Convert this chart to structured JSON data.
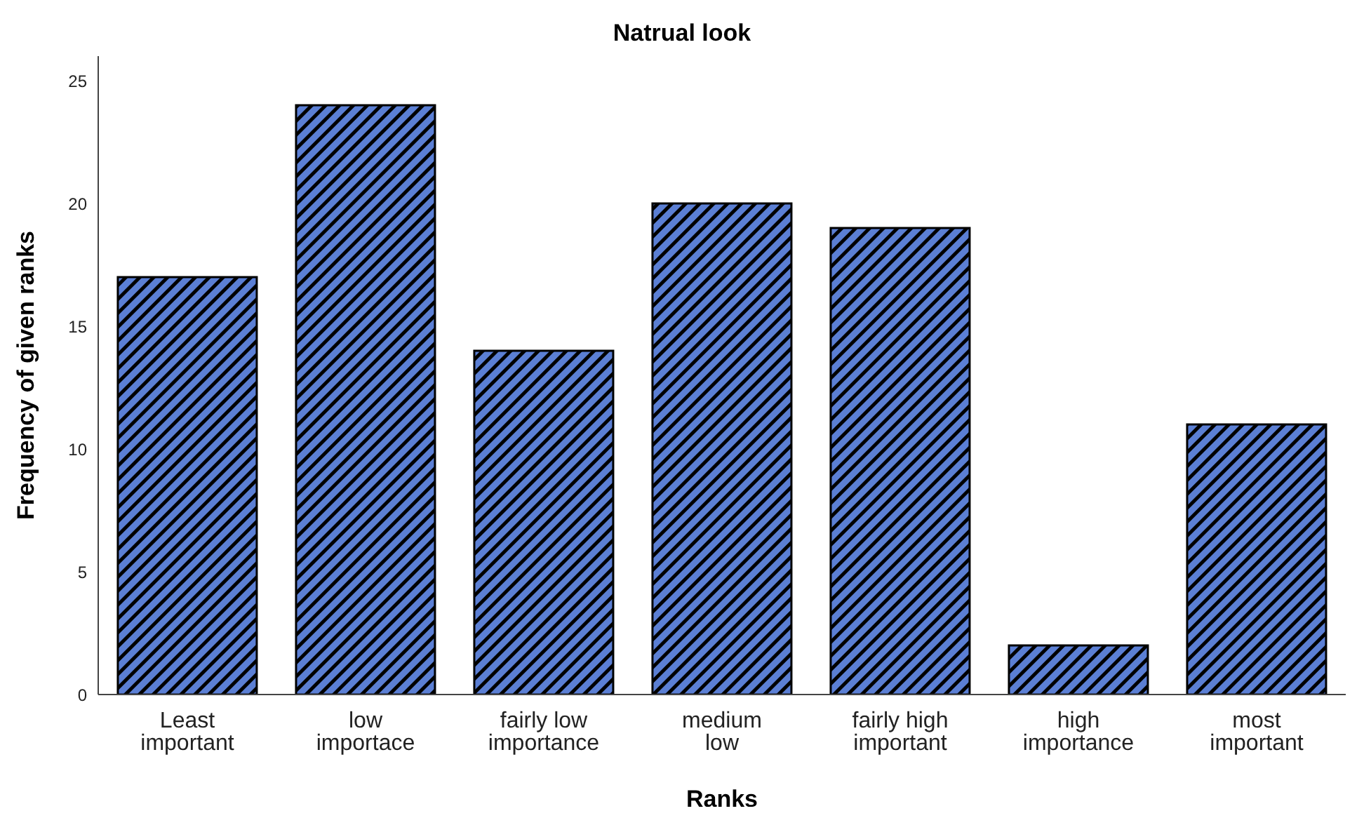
{
  "chart_data": {
    "type": "bar",
    "title": "Natrual look",
    "xlabel": "Ranks",
    "ylabel": "Frequency of given ranks",
    "categories": [
      "Least important",
      "low importace",
      "fairly low importance",
      "medium low",
      "fairly high important",
      "high importance",
      "most important"
    ],
    "values": [
      17,
      24,
      14,
      20,
      19,
      2,
      11
    ],
    "color": "#5b7fd4",
    "ylim": [
      0,
      26
    ],
    "yticks": [
      0,
      5,
      10,
      15,
      20,
      25
    ],
    "grid": false,
    "legend": false
  }
}
